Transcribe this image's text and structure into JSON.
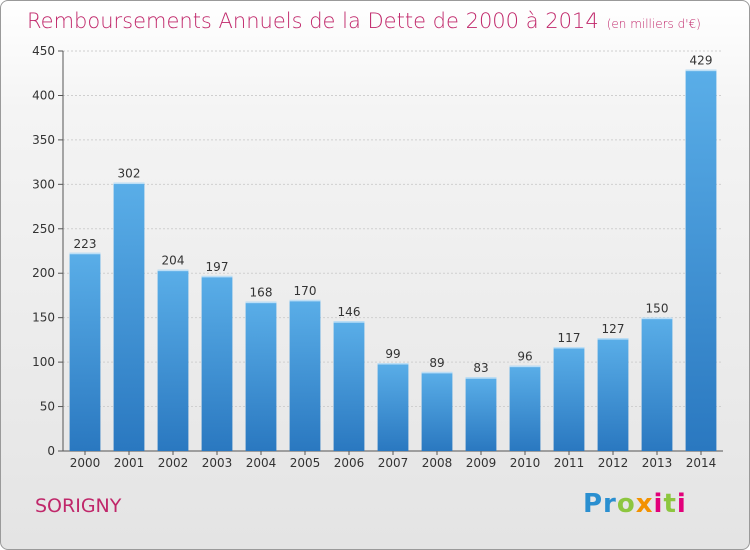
{
  "chart_data": {
    "type": "bar",
    "title": "Remboursements Annuels de la Dette de 2000 à 2014",
    "subtitle": "(en milliers d'€)",
    "categories": [
      "2000",
      "2001",
      "2002",
      "2003",
      "2004",
      "2005",
      "2006",
      "2007",
      "2008",
      "2009",
      "2010",
      "2011",
      "2012",
      "2013",
      "2014"
    ],
    "values": [
      223,
      302,
      204,
      197,
      168,
      170,
      146,
      99,
      89,
      83,
      96,
      117,
      127,
      150,
      429
    ],
    "ylim": [
      0,
      450
    ],
    "yticks": [
      0,
      50,
      100,
      150,
      200,
      250,
      300,
      350,
      400,
      450
    ],
    "grid": true,
    "bar_color": "#3d92d6",
    "title_color": "#c0276a"
  },
  "footer": {
    "commune": "SORIGNY",
    "logo": "Proxiti"
  }
}
